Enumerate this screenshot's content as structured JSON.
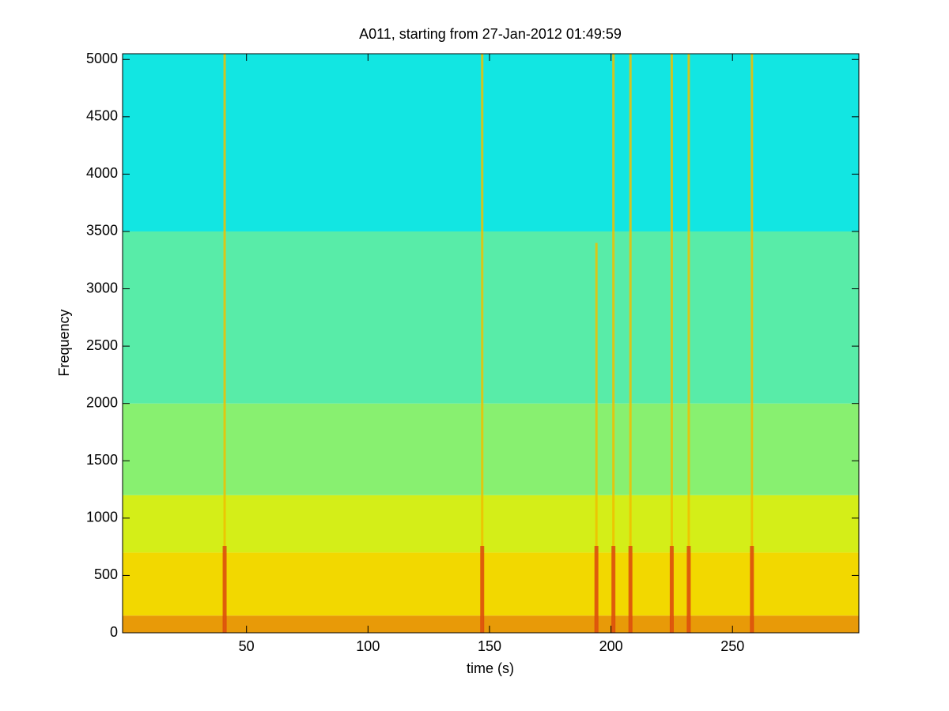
{
  "chart_data": {
    "type": "spectrogram",
    "title": "A011, starting from 27-Jan-2012 01:49:59",
    "x_label": "time (s)",
    "y_label": "Frequency",
    "xlim": [
      -1,
      302
    ],
    "ylim": [
      0,
      5050
    ],
    "xticks": [
      50,
      100,
      150,
      200,
      250
    ],
    "yticks": [
      0,
      500,
      1000,
      1500,
      2000,
      2500,
      3000,
      3500,
      4000,
      4500,
      5000
    ],
    "bands": {
      "y": [
        0,
        150,
        700,
        1200,
        2000,
        3500
      ],
      "color": [
        "#e89a08",
        "#f2d800",
        "#d4ee18",
        "#88f070",
        "#58eca8",
        "#12e6e2"
      ]
    },
    "bursts": {
      "x": [
        41,
        147,
        194,
        201,
        208,
        225,
        232,
        258
      ],
      "fmax": [
        5050,
        5050,
        3400,
        5050,
        5050,
        5050,
        5050,
        5050
      ],
      "color": "#f0c000"
    }
  }
}
